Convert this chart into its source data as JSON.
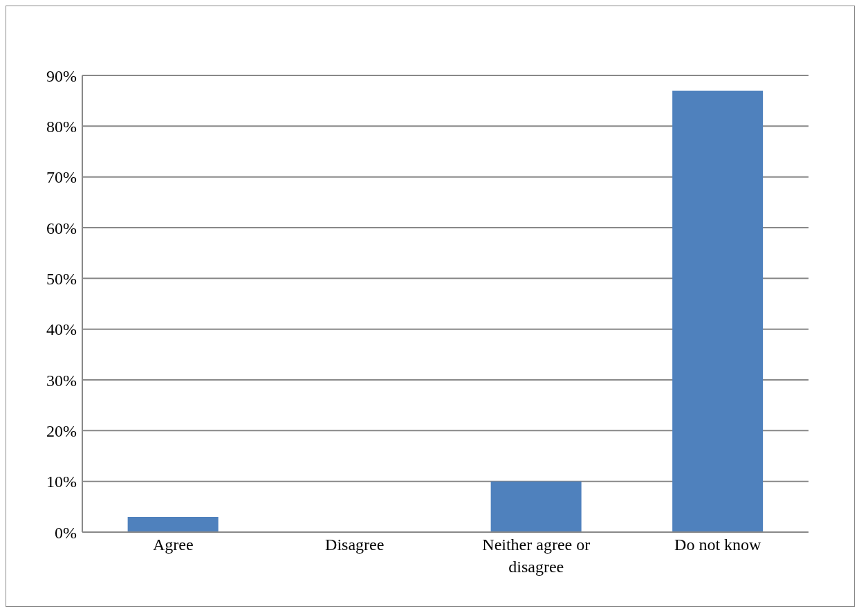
{
  "chart_data": {
    "type": "bar",
    "categories": [
      "Agree",
      "Disagree",
      "Neither agree or disagree",
      "Do not know"
    ],
    "values": [
      3,
      0,
      10,
      87
    ],
    "color": "#4f81bd",
    "ylim": [
      0,
      90
    ],
    "yticks": [
      {
        "value": 0,
        "label": "0%"
      },
      {
        "value": 10,
        "label": "10%"
      },
      {
        "value": 20,
        "label": "20%"
      },
      {
        "value": 30,
        "label": "30%"
      },
      {
        "value": 40,
        "label": "40%"
      },
      {
        "value": 50,
        "label": "50%"
      },
      {
        "value": 60,
        "label": "60%"
      },
      {
        "value": 70,
        "label": "70%"
      },
      {
        "value": 80,
        "label": "80%"
      },
      {
        "value": 90,
        "label": "90%"
      }
    ],
    "grid": "y"
  }
}
